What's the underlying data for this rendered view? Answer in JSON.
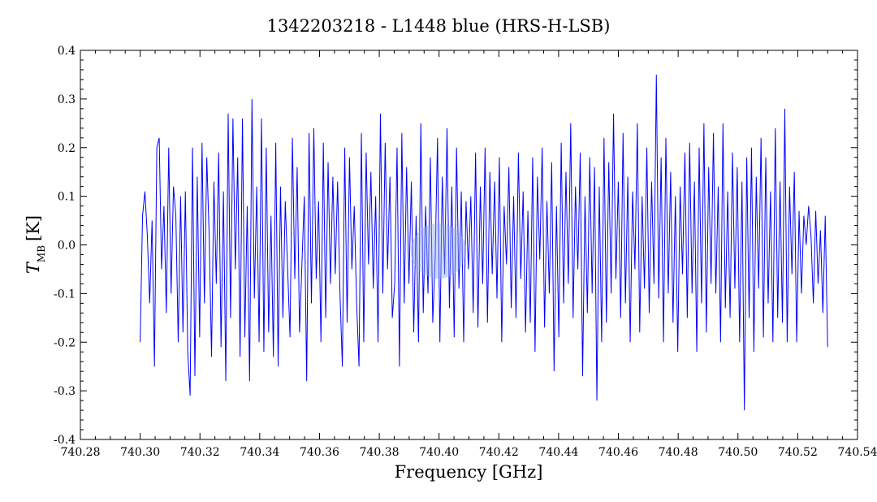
{
  "chart_data": {
    "type": "line",
    "title": "1342203218 - L1448 blue (HRS-H-LSB)",
    "xlabel": "Frequency [GHz]",
    "ylabel_main": "T",
    "ylabel_sub": "MB",
    "ylabel_unit": "[K]",
    "xlim": [
      740.28,
      740.54
    ],
    "ylim": [
      -0.4,
      0.4
    ],
    "x_ticks": [
      "740.28",
      "740.30",
      "740.32",
      "740.34",
      "740.36",
      "740.38",
      "740.40",
      "740.42",
      "740.44",
      "740.46",
      "740.48",
      "740.50",
      "740.52",
      "740.54"
    ],
    "y_ticks": [
      "-0.4",
      "-0.3",
      "-0.2",
      "-0.1",
      "0.0",
      "0.1",
      "0.2",
      "0.3",
      "0.4"
    ],
    "grid": false,
    "series": [
      {
        "color": "#0000ff",
        "x_start": 740.3,
        "x_end": 740.53,
        "y": [
          -0.2,
          0.06,
          0.11,
          0.02,
          -0.12,
          0.05,
          -0.25,
          0.2,
          0.22,
          -0.05,
          0.08,
          -0.14,
          0.2,
          -0.1,
          0.12,
          0.06,
          -0.2,
          0.1,
          -0.18,
          0.11,
          -0.22,
          -0.31,
          0.2,
          -0.27,
          0.14,
          -0.19,
          0.21,
          -0.12,
          0.18,
          0.02,
          -0.23,
          0.13,
          -0.08,
          0.19,
          -0.21,
          0.11,
          -0.28,
          0.27,
          -0.15,
          0.26,
          -0.05,
          0.18,
          -0.23,
          0.26,
          -0.19,
          0.08,
          -0.28,
          0.3,
          -0.11,
          0.12,
          -0.2,
          0.26,
          -0.22,
          0.2,
          -0.18,
          0.06,
          -0.23,
          0.21,
          -0.25,
          0.12,
          -0.15,
          0.09,
          -0.05,
          -0.19,
          0.22,
          -0.07,
          0.16,
          -0.18,
          -0.04,
          0.1,
          -0.28,
          0.23,
          -0.12,
          0.24,
          -0.07,
          0.09,
          -0.2,
          0.21,
          -0.15,
          0.17,
          -0.08,
          0.14,
          -0.06,
          0.13,
          -0.1,
          -0.25,
          0.2,
          -0.16,
          0.18,
          -0.05,
          0.08,
          -0.12,
          -0.25,
          0.23,
          -0.2,
          0.19,
          -0.04,
          0.15,
          -0.09,
          0.1,
          -0.2,
          0.27,
          -0.1,
          0.21,
          -0.05,
          0.14,
          -0.15,
          -0.08,
          0.2,
          -0.25,
          0.23,
          -0.12,
          0.16,
          -0.08,
          0.13,
          -0.18,
          0.06,
          -0.2,
          0.25,
          -0.14,
          0.08,
          -0.1,
          0.18,
          -0.16,
          -0.03,
          0.22,
          -0.2,
          0.14,
          -0.06,
          0.24,
          -0.13,
          0.12,
          -0.19,
          0.2,
          -0.09,
          0.11,
          -0.2,
          0.09,
          -0.05,
          0.1,
          -0.14,
          0.19,
          -0.17,
          0.12,
          -0.08,
          0.2,
          -0.16,
          0.15,
          -0.06,
          0.13,
          -0.11,
          0.18,
          -0.2,
          0.08,
          -0.04,
          0.16,
          -0.13,
          0.1,
          -0.15,
          0.19,
          -0.07,
          0.11,
          -0.18,
          0.07,
          -0.16,
          0.18,
          -0.22,
          0.14,
          -0.03,
          0.2,
          -0.17,
          0.09,
          -0.1,
          0.17,
          -0.26,
          0.08,
          -0.19,
          0.21,
          -0.12,
          0.15,
          -0.08,
          0.25,
          -0.15,
          0.12,
          -0.05,
          0.19,
          -0.27,
          0.1,
          -0.14,
          0.18,
          -0.1,
          0.16,
          -0.32,
          0.12,
          -0.2,
          0.22,
          -0.16,
          0.17,
          -0.1,
          0.27,
          -0.07,
          0.13,
          -0.15,
          0.23,
          -0.12,
          0.14,
          -0.2,
          0.11,
          -0.05,
          0.25,
          -0.18,
          0.1,
          -0.09,
          0.2,
          -0.14,
          0.13,
          -0.08,
          0.35,
          -0.11,
          0.18,
          -0.2,
          0.22,
          -0.1,
          0.15,
          -0.16,
          0.1,
          -0.22,
          0.12,
          -0.06,
          0.19,
          -0.15,
          0.21,
          -0.1,
          0.13,
          -0.22,
          0.2,
          -0.12,
          0.25,
          -0.18,
          0.16,
          -0.08,
          0.23,
          -0.1,
          0.12,
          -0.2,
          0.25,
          -0.13,
          0.11,
          -0.15,
          0.19,
          -0.09,
          0.16,
          -0.2,
          0.13,
          -0.34,
          0.18,
          -0.15,
          0.2,
          -0.22,
          0.14,
          -0.09,
          0.22,
          -0.19,
          0.18,
          -0.12,
          0.11,
          -0.2,
          0.24,
          -0.15,
          0.13,
          -0.16,
          0.28,
          -0.2,
          0.12,
          -0.06,
          0.15,
          -0.2,
          0.07,
          -0.1,
          0.06,
          0.0,
          0.08,
          0.02,
          -0.12,
          0.07,
          -0.08,
          0.03,
          -0.14,
          0.06,
          -0.21
        ]
      }
    ]
  }
}
